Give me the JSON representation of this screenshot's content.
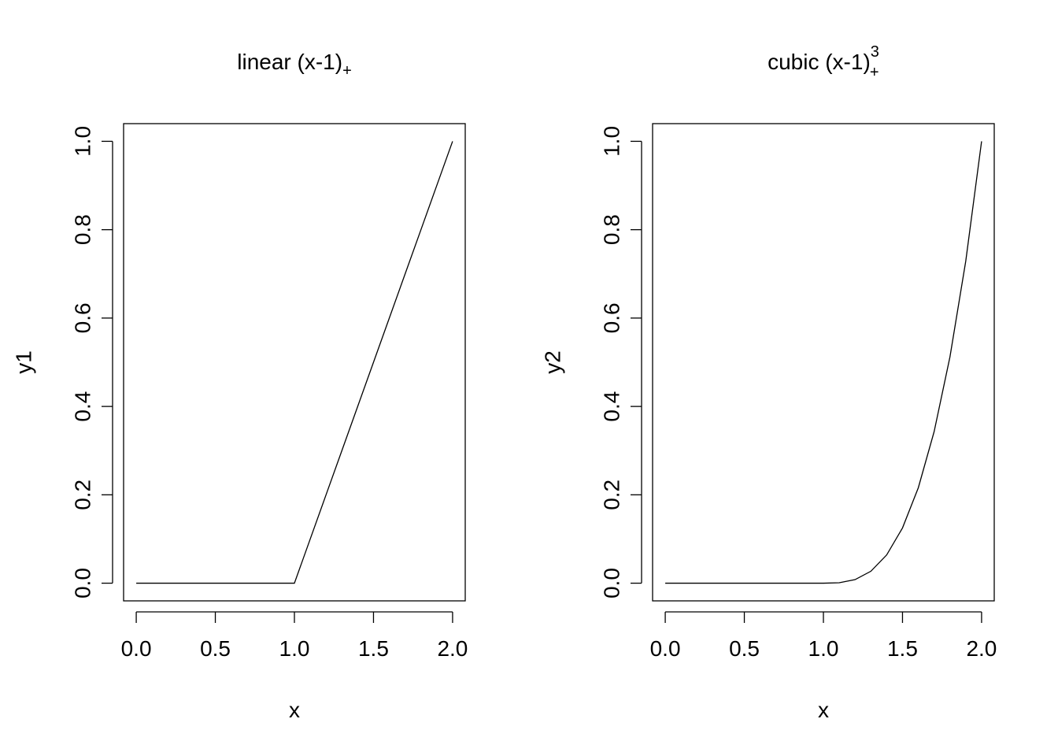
{
  "chart_data": [
    {
      "type": "line",
      "title": "linear (x-1)",
      "title_subscript": "+",
      "x_label": "x",
      "y_label": "y1",
      "x": [
        0,
        0.1,
        0.2,
        0.3,
        0.4,
        0.5,
        0.6,
        0.7,
        0.8,
        0.9,
        1,
        1.1,
        1.2,
        1.3,
        1.4,
        1.5,
        1.6,
        1.7,
        1.8,
        1.9,
        2
      ],
      "series": [
        {
          "color": "#000000",
          "values": [
            0,
            0,
            0,
            0,
            0,
            0,
            0,
            0,
            0,
            0,
            0,
            0.1,
            0.2,
            0.3,
            0.4,
            0.5,
            0.6,
            0.7,
            0.8,
            0.9,
            1
          ]
        }
      ],
      "xlim": [
        -0.08,
        2.08
      ],
      "ylim": [
        -0.04,
        1.04
      ],
      "xticks": [
        {
          "value": 0,
          "label": "0.0"
        },
        0.5,
        {
          "value": 1,
          "label": "1.0"
        },
        1.5,
        {
          "value": 2,
          "label": "2.0"
        }
      ],
      "yticks": [
        {
          "value": 0,
          "label": "0.0"
        },
        0.2,
        0.4,
        0.6,
        0.8,
        {
          "value": 1,
          "label": "1.0"
        }
      ]
    },
    {
      "type": "line",
      "title": "cubic (x-1)",
      "title_subscript": "+",
      "title_superscript": "3",
      "x_label": "x",
      "y_label": "y2",
      "x": [
        0,
        0.1,
        0.2,
        0.3,
        0.4,
        0.5,
        0.6,
        0.7,
        0.8,
        0.9,
        1,
        1.1,
        1.2,
        1.3,
        1.4,
        1.5,
        1.6,
        1.7,
        1.8,
        1.9,
        2
      ],
      "series": [
        {
          "color": "#000000",
          "values": [
            0,
            0,
            0,
            0,
            0,
            0,
            0,
            0,
            0,
            0,
            0,
            0.001,
            0.008,
            0.027,
            0.064,
            0.125,
            0.216,
            0.343,
            0.512,
            0.729,
            1
          ]
        }
      ],
      "xlim": [
        -0.08,
        2.08
      ],
      "ylim": [
        -0.04,
        1.04
      ],
      "xticks": [
        {
          "value": 0,
          "label": "0.0"
        },
        0.5,
        {
          "value": 1,
          "label": "1.0"
        },
        1.5,
        {
          "value": 2,
          "label": "2.0"
        }
      ],
      "yticks": [
        {
          "value": 0,
          "label": "0.0"
        },
        0.2,
        0.4,
        0.6,
        0.8,
        {
          "value": 1,
          "label": "1.0"
        }
      ]
    }
  ]
}
